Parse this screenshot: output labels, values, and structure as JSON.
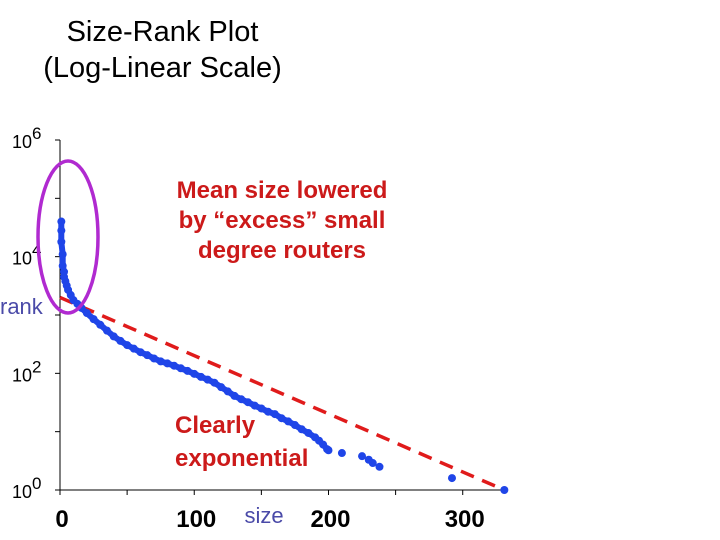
{
  "title": {
    "line1": "Size-Rank Plot",
    "line2": "(Log-Linear Scale)"
  },
  "colors": {
    "points": "#1f45e8",
    "fit": "#e01b1b",
    "oval": "#b02ad0",
    "axis_text": "#4a4aa8",
    "annotation_top": "#cc1a1a",
    "annotation_bottom": "#cc1a1a"
  },
  "annotations": {
    "top": [
      "Mean size lowered",
      "by “excess” small",
      "degree routers"
    ],
    "bottom": [
      "Clearly",
      "exponential"
    ]
  },
  "chart_data": {
    "type": "scatter",
    "title": "Size-Rank Plot (Log-Linear Scale)",
    "xlabel": "size",
    "ylabel": "rank",
    "xlim": [
      0,
      330
    ],
    "ylim": [
      1,
      1000000
    ],
    "yscale": "log",
    "x_ticks": [
      0,
      100,
      200,
      300
    ],
    "y_ticks": [
      {
        "base": "10",
        "exp": "0",
        "value": 1
      },
      {
        "base": "10",
        "exp": "2",
        "value": 100
      },
      {
        "base": "10",
        "exp": "4",
        "value": 10000
      },
      {
        "base": "10",
        "exp": "6",
        "value": 1000000
      }
    ],
    "grid": false,
    "series": [
      {
        "kind": "points",
        "x": [
          1,
          1,
          1,
          2,
          2,
          3,
          3,
          4,
          5,
          6,
          8,
          10,
          13,
          16,
          20,
          25,
          30,
          35,
          40,
          45,
          50,
          55,
          60,
          65,
          70,
          75,
          80,
          85,
          90,
          95,
          100,
          105,
          110,
          115,
          120,
          125,
          130,
          135,
          140,
          145,
          150,
          155,
          160,
          165,
          170,
          175,
          180,
          185,
          190,
          193,
          196,
          199,
          200,
          210,
          225,
          230,
          233,
          238,
          292,
          331
        ],
        "y": [
          40000,
          28000,
          18000,
          11000,
          7000,
          5500,
          4500,
          3800,
          3200,
          2700,
          2200,
          1800,
          1550,
          1320,
          1080,
          850,
          680,
          540,
          430,
          360,
          305,
          265,
          230,
          205,
          180,
          160,
          148,
          135,
          122,
          110,
          98,
          87,
          78,
          69,
          58,
          49,
          41,
          36,
          32,
          28,
          25,
          22,
          20,
          17,
          15,
          13,
          11,
          9.5,
          8,
          7,
          6,
          5,
          4.8,
          4.3,
          3.8,
          3.3,
          2.9,
          2.5,
          1.6,
          1
        ]
      },
      {
        "kind": "fit",
        "x": [
          0,
          331
        ],
        "y": [
          2000,
          1
        ]
      }
    ]
  }
}
